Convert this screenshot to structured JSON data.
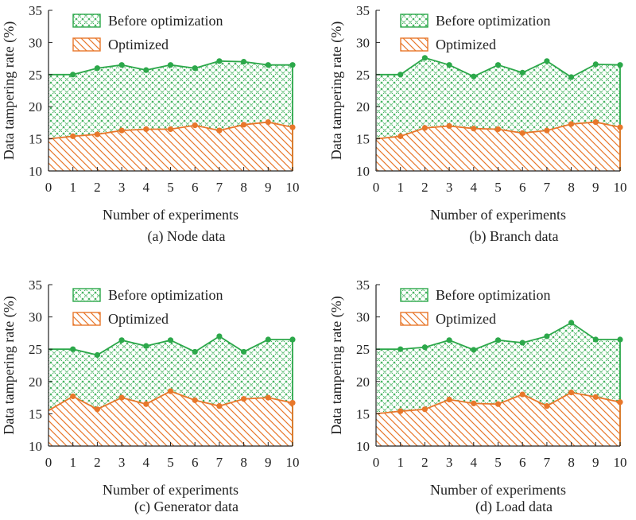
{
  "colors": {
    "before": "#2ca84a",
    "optimized": "#e8772a",
    "axis": "#222222"
  },
  "chart_data": [
    {
      "type": "area",
      "caption": "(a) Node data",
      "xlabel": "Number of experiments",
      "ylabel": "Data tampering rate (%)",
      "xlim": [
        0,
        10
      ],
      "ylim": [
        10,
        35
      ],
      "xticks": [
        0,
        1,
        2,
        3,
        4,
        5,
        6,
        7,
        8,
        9,
        10
      ],
      "yticks": [
        10,
        15,
        20,
        25,
        30,
        35
      ],
      "x": [
        0,
        1,
        2,
        3,
        4,
        5,
        6,
        7,
        8,
        9,
        10
      ],
      "legend_position": "top-left",
      "series": [
        {
          "name": "Before optimization",
          "color": "#2ca84a",
          "pattern": "crosshatch",
          "values": [
            25.0,
            25.0,
            26.0,
            26.5,
            25.7,
            26.5,
            26.0,
            27.1,
            27.0,
            26.5,
            26.5
          ]
        },
        {
          "name": "Optimized",
          "color": "#e8772a",
          "pattern": "diagonal",
          "values": [
            15.0,
            15.4,
            15.7,
            16.3,
            16.5,
            16.5,
            17.1,
            16.3,
            17.2,
            17.6,
            16.8
          ]
        }
      ]
    },
    {
      "type": "area",
      "caption": "(b) Branch data",
      "xlabel": "Number of experiments",
      "ylabel": "Data tampering rate (%)",
      "xlim": [
        0,
        10
      ],
      "ylim": [
        10,
        35
      ],
      "xticks": [
        0,
        1,
        2,
        3,
        4,
        5,
        6,
        7,
        8,
        9,
        10
      ],
      "yticks": [
        10,
        15,
        20,
        25,
        30,
        35
      ],
      "x": [
        0,
        1,
        2,
        3,
        4,
        5,
        6,
        7,
        8,
        9,
        10
      ],
      "legend_position": "top-left",
      "series": [
        {
          "name": "Before optimization",
          "color": "#2ca84a",
          "pattern": "crosshatch",
          "values": [
            25.0,
            25.0,
            27.6,
            26.5,
            24.7,
            26.5,
            25.3,
            27.1,
            24.6,
            26.6,
            26.5
          ]
        },
        {
          "name": "Optimized",
          "color": "#e8772a",
          "pattern": "diagonal",
          "values": [
            15.0,
            15.4,
            16.7,
            17.0,
            16.6,
            16.5,
            15.9,
            16.3,
            17.3,
            17.6,
            16.8
          ]
        }
      ]
    },
    {
      "type": "area",
      "caption": "(c) Generator data",
      "xlabel": "Number of experiments",
      "ylabel": "Data tampering rate (%)",
      "xlim": [
        0,
        10
      ],
      "ylim": [
        10,
        35
      ],
      "xticks": [
        0,
        1,
        2,
        3,
        4,
        5,
        6,
        7,
        8,
        9,
        10
      ],
      "yticks": [
        10,
        15,
        20,
        25,
        30,
        35
      ],
      "x": [
        0,
        1,
        2,
        3,
        4,
        5,
        6,
        7,
        8,
        9,
        10
      ],
      "legend_position": "top-left",
      "series": [
        {
          "name": "Before optimization",
          "color": "#2ca84a",
          "pattern": "crosshatch",
          "values": [
            25.0,
            25.0,
            24.1,
            26.4,
            25.5,
            26.4,
            24.6,
            27.0,
            24.6,
            26.5,
            26.5
          ]
        },
        {
          "name": "Optimized",
          "color": "#e8772a",
          "pattern": "diagonal",
          "values": [
            15.5,
            17.7,
            15.7,
            17.5,
            16.5,
            18.5,
            17.1,
            16.2,
            17.3,
            17.5,
            16.7
          ]
        }
      ]
    },
    {
      "type": "area",
      "caption": "(d) Load data",
      "xlabel": "Number of experiments",
      "ylabel": "Data tampering rate (%)",
      "xlim": [
        0,
        10
      ],
      "ylim": [
        10,
        35
      ],
      "xticks": [
        0,
        1,
        2,
        3,
        4,
        5,
        6,
        7,
        8,
        9,
        10
      ],
      "yticks": [
        10,
        15,
        20,
        25,
        30,
        35
      ],
      "x": [
        0,
        1,
        2,
        3,
        4,
        5,
        6,
        7,
        8,
        9,
        10
      ],
      "legend_position": "top-left",
      "series": [
        {
          "name": "Before optimization",
          "color": "#2ca84a",
          "pattern": "crosshatch",
          "values": [
            25.0,
            25.0,
            25.3,
            26.4,
            24.9,
            26.4,
            26.0,
            27.0,
            29.1,
            26.5,
            26.5
          ]
        },
        {
          "name": "Optimized",
          "color": "#e8772a",
          "pattern": "diagonal",
          "values": [
            15.0,
            15.4,
            15.7,
            17.2,
            16.6,
            16.5,
            18.0,
            16.2,
            18.3,
            17.6,
            16.8
          ]
        }
      ]
    }
  ]
}
